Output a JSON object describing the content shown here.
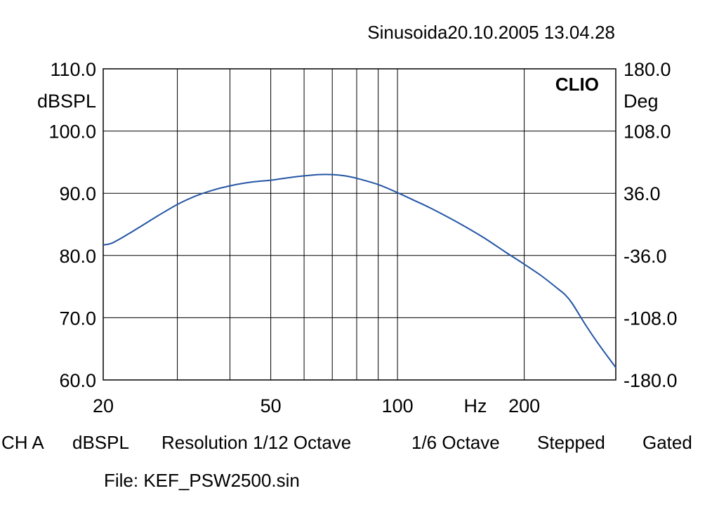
{
  "header": {
    "title": "Sinusoida20.10.2005 13.04.28"
  },
  "chart_data": {
    "type": "line",
    "brand": "CLIO",
    "x_scale": "log",
    "xlim": [
      20,
      330
    ],
    "x_ticks": [
      {
        "value": 20,
        "label": "20"
      },
      {
        "value": 50,
        "label": "50"
      },
      {
        "value": 100,
        "label": "100"
      },
      {
        "value": 200,
        "label": "200"
      }
    ],
    "x_unit_label": "Hz",
    "x_gridlines": [
      20,
      30,
      40,
      50,
      60,
      70,
      80,
      90,
      100,
      200,
      330
    ],
    "y_left": {
      "label": "dBSPL",
      "range": [
        60,
        110
      ],
      "ticks": [
        "60.0",
        "70.0",
        "80.0",
        "90.0",
        "100.0",
        "110.0"
      ]
    },
    "y_right": {
      "label": "Deg",
      "range": [
        -180,
        180
      ],
      "ticks": [
        "-180.0",
        "-108.0",
        "-36.0",
        "36.0",
        "108.0",
        "180.0"
      ]
    },
    "grid": true,
    "line_color": "#2456a4",
    "series": [
      {
        "axis": "left",
        "x": [
          20,
          21,
          23,
          25,
          27,
          30,
          33,
          36,
          40,
          45,
          50,
          55,
          60,
          65,
          70,
          75,
          80,
          90,
          100,
          110,
          120,
          140,
          160,
          180,
          200,
          220,
          240,
          250,
          260,
          280,
          300,
          330
        ],
        "y": [
          81.7,
          82.0,
          83.5,
          85.0,
          86.4,
          88.2,
          89.5,
          90.4,
          91.2,
          91.8,
          92.1,
          92.5,
          92.8,
          93.0,
          93.0,
          92.8,
          92.4,
          91.4,
          90.1,
          88.8,
          87.6,
          85.2,
          82.9,
          80.6,
          78.6,
          76.7,
          74.7,
          73.7,
          72.3,
          68.8,
          65.8,
          62.0
        ]
      }
    ]
  },
  "footer": {
    "channel": "CH A",
    "unit": "dBSPL",
    "resolution": "Resolution 1/12 Octave",
    "smoothing": "1/6 Octave",
    "mode": "Stepped",
    "gating": "Gated",
    "file": "File: KEF_PSW2500.sin"
  }
}
